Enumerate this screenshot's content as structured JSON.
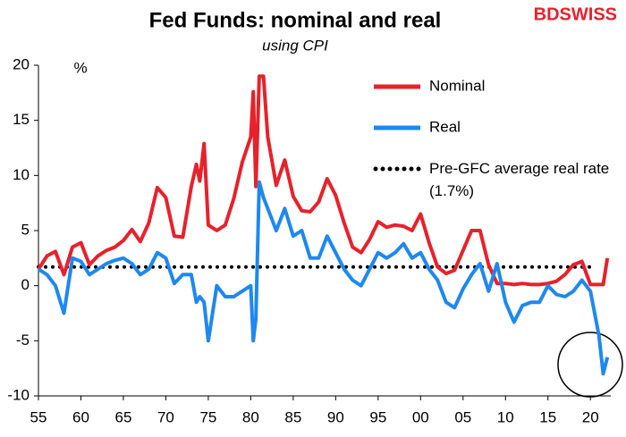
{
  "chart_data": {
    "type": "line",
    "title": "Fed Funds: nominal and real",
    "subtitle": "using CPI",
    "y_label": "%",
    "brand": "BDSWISS",
    "x": [
      1955,
      1956,
      1957,
      1958,
      1959,
      1960,
      1961,
      1962,
      1963,
      1964,
      1965,
      1966,
      1967,
      1968,
      1969,
      1970,
      1971,
      1972,
      1973,
      1973.6,
      1974,
      1974.5,
      1975,
      1976,
      1977,
      1978,
      1979,
      1980,
      1980.3,
      1980.6,
      1981,
      1981.5,
      1982,
      1983,
      1984,
      1985,
      1986,
      1987,
      1988,
      1989,
      1990,
      1991,
      1992,
      1993,
      1994,
      1995,
      1996,
      1997,
      1998,
      1999,
      2000,
      2001,
      2002,
      2003,
      2004,
      2005,
      2006,
      2007,
      2008,
      2009,
      2010,
      2011,
      2012,
      2013,
      2014,
      2015,
      2016,
      2017,
      2018,
      2019,
      2020,
      2021,
      2021.5,
      2022
    ],
    "series": [
      {
        "name": "Nominal",
        "color": "#e8212b",
        "values": [
          1.5,
          2.7,
          3.1,
          1.0,
          3.5,
          3.9,
          1.9,
          2.7,
          3.2,
          3.5,
          4.1,
          5.1,
          4.0,
          5.7,
          8.9,
          8.0,
          4.5,
          4.4,
          9.0,
          11.0,
          9.5,
          12.9,
          5.5,
          5.0,
          5.5,
          7.9,
          11.2,
          13.5,
          17.6,
          9.0,
          19.0,
          19.0,
          13.5,
          9.1,
          11.4,
          8.1,
          6.8,
          6.7,
          7.6,
          9.7,
          8.2,
          5.7,
          3.5,
          3.0,
          4.2,
          5.8,
          5.3,
          5.5,
          5.4,
          5.0,
          6.5,
          3.9,
          1.7,
          1.1,
          1.4,
          3.2,
          5.0,
          5.0,
          1.9,
          0.2,
          0.2,
          0.1,
          0.2,
          0.1,
          0.1,
          0.2,
          0.4,
          1.0,
          1.9,
          2.2,
          0.1,
          0.1,
          0.1,
          2.5
        ]
      },
      {
        "name": "Real",
        "color": "#1e88f0",
        "values": [
          1.5,
          1.0,
          0.0,
          -2.5,
          2.5,
          2.2,
          1.0,
          1.5,
          2.0,
          2.3,
          2.5,
          2.0,
          1.0,
          1.5,
          3.0,
          2.5,
          0.2,
          1.0,
          1.0,
          -1.5,
          -1.0,
          -1.5,
          -5.0,
          0.0,
          -1.0,
          -1.0,
          -0.5,
          0.0,
          -5.0,
          -3.0,
          9.4,
          8.0,
          7.0,
          5.0,
          7.0,
          4.5,
          5.0,
          2.5,
          2.5,
          4.5,
          3.0,
          1.5,
          0.5,
          0.0,
          1.5,
          3.0,
          2.5,
          3.0,
          3.8,
          2.5,
          3.0,
          1.5,
          0.5,
          -1.5,
          -2.0,
          -0.3,
          1.0,
          2.0,
          -0.5,
          2.0,
          -1.5,
          -3.3,
          -1.8,
          -1.5,
          -1.5,
          0.0,
          -0.8,
          -1.0,
          -0.5,
          0.5,
          -0.5,
          -4.5,
          -8.0,
          -6.5
        ]
      }
    ],
    "reference": {
      "name": "Pre-GFC average real rate (1.7%)",
      "value": 1.7,
      "x": [
        1955,
        2020
      ],
      "color": "#000000"
    },
    "xlim": [
      1955,
      2022.4
    ],
    "xticks": [
      {
        "value": 1955,
        "label": "55"
      },
      {
        "value": 1960,
        "label": "60"
      },
      {
        "value": 1965,
        "label": "65"
      },
      {
        "value": 1970,
        "label": "70"
      },
      {
        "value": 1975,
        "label": "75"
      },
      {
        "value": 1980,
        "label": "80"
      },
      {
        "value": 1985,
        "label": "85"
      },
      {
        "value": 1990,
        "label": "90"
      },
      {
        "value": 1995,
        "label": "95"
      },
      {
        "value": 2000,
        "label": "00"
      },
      {
        "value": 2005,
        "label": "05"
      },
      {
        "value": 2010,
        "label": "10"
      },
      {
        "value": 2015,
        "label": "15"
      },
      {
        "value": 2020,
        "label": "20"
      }
    ],
    "ylim": [
      -10,
      20
    ],
    "yticks": [
      20,
      15,
      10,
      5,
      0,
      -5,
      -10
    ]
  }
}
